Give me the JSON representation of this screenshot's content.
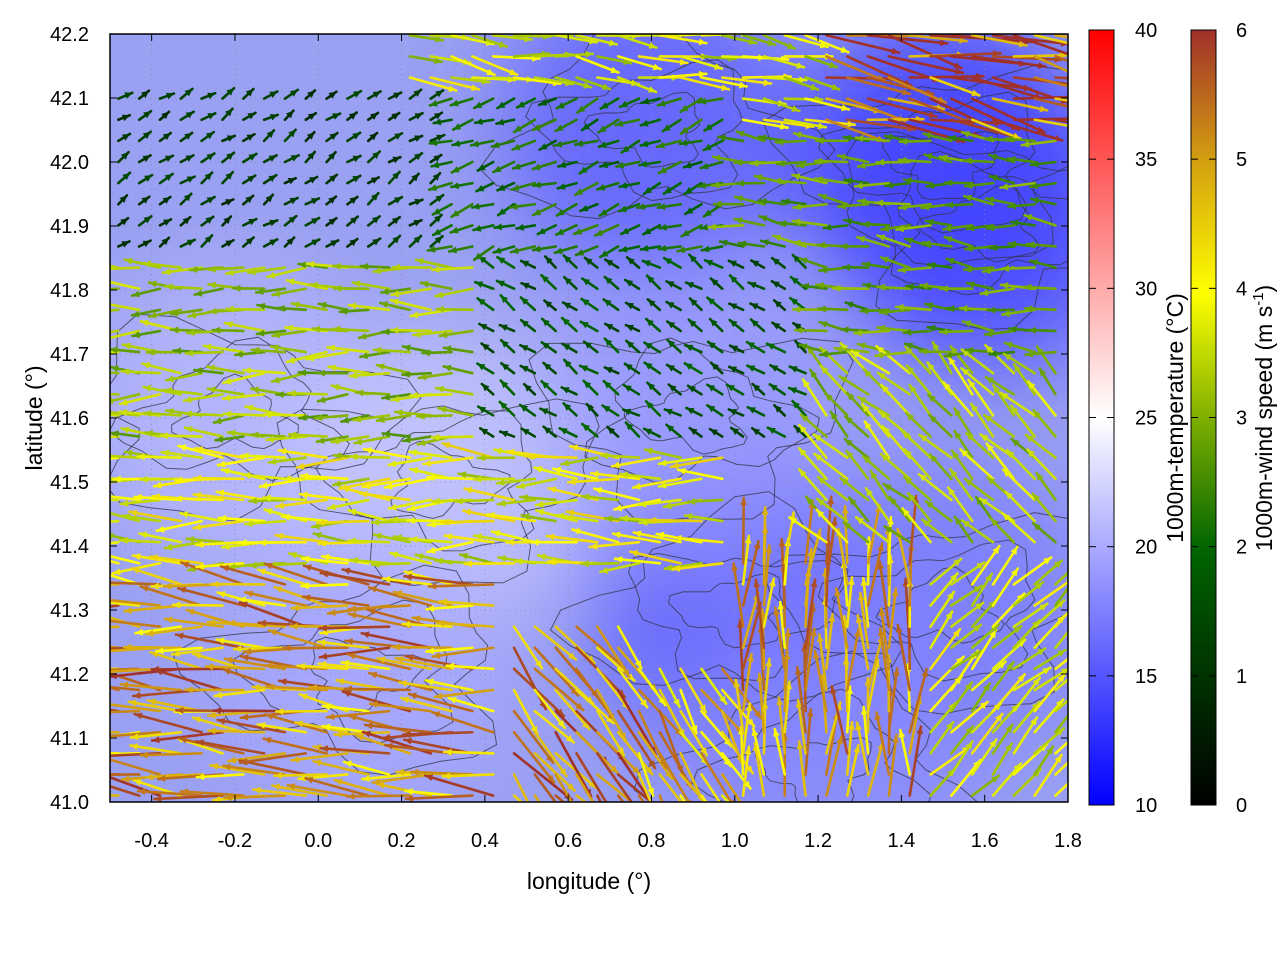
{
  "chart_data": {
    "type": "heatmap",
    "subtype": "wind-vector field over temperature map with contours",
    "title": "",
    "xlabel": "longitude (°)",
    "ylabel": "latitude (°)",
    "xlim": [
      -0.5,
      1.8
    ],
    "ylim": [
      41.0,
      42.2
    ],
    "xticks": [
      "-0.4",
      "-0.2",
      "0.0",
      "0.2",
      "0.4",
      "0.6",
      "0.8",
      "1.0",
      "1.2",
      "1.4",
      "1.6",
      "1.8"
    ],
    "yticks": [
      "41.0",
      "41.1",
      "41.2",
      "41.3",
      "41.4",
      "41.5",
      "41.6",
      "41.7",
      "41.8",
      "41.9",
      "42.0",
      "42.1",
      "42.2"
    ],
    "grid": true,
    "temperature_colorbar": {
      "label": "1000m-temperature (°C)",
      "range": [
        10,
        40
      ],
      "ticks": [
        "10",
        "15",
        "20",
        "25",
        "30",
        "35",
        "40"
      ],
      "colors": [
        "#0000ff",
        "#ffffff",
        "#ff0000"
      ]
    },
    "wind_colorbar": {
      "label_main": "1000m-wind speed (m s",
      "label_sup": "-1",
      "label_end": ")",
      "range": [
        0,
        6
      ],
      "ticks": [
        "0",
        "1",
        "2",
        "3",
        "4",
        "5",
        "6"
      ],
      "colors": [
        "#000000",
        "#006400",
        "#7fb000",
        "#ffff00",
        "#d4a010",
        "#a0302a"
      ]
    },
    "temperature_regions": [
      {
        "lon": -0.2,
        "lat": 41.6,
        "temp": 21
      },
      {
        "lon": 0.3,
        "lat": 41.5,
        "temp": 22
      },
      {
        "lon": 0.1,
        "lat": 41.2,
        "temp": 20
      },
      {
        "lon": 1.5,
        "lat": 42.0,
        "temp": 13
      },
      {
        "lon": 1.6,
        "lat": 41.9,
        "temp": 14
      },
      {
        "lon": 0.8,
        "lat": 42.05,
        "temp": 15
      },
      {
        "lon": 1.0,
        "lat": 41.3,
        "temp": 15
      },
      {
        "lon": 0.9,
        "lat": 41.6,
        "temp": 19
      },
      {
        "lon": 1.5,
        "lat": 41.3,
        "temp": 17
      },
      {
        "lon": 1.2,
        "lat": 41.05,
        "temp": 18
      }
    ],
    "wind_zones": [
      {
        "lon": [
          -0.5,
          0.45
        ],
        "lat": [
          41.0,
          41.35
        ],
        "u": -4.8,
        "v": 0.5,
        "speed": 4.8
      },
      {
        "lon": [
          0.4,
          0.75
        ],
        "lat": [
          41.0,
          41.3
        ],
        "u": 2.2,
        "v": -2.6,
        "speed": 5.0
      },
      {
        "lon": [
          0.75,
          1.0
        ],
        "lat": [
          41.0,
          41.22
        ],
        "u": 1.5,
        "v": -2.5,
        "speed": 4.4
      },
      {
        "lon": [
          1.0,
          1.45
        ],
        "lat": [
          41.0,
          41.4
        ],
        "u": 0.1,
        "v": 4.5,
        "speed": 4.7
      },
      {
        "lon": [
          1.45,
          1.8
        ],
        "lat": [
          41.0,
          41.35
        ],
        "u": 2.0,
        "v": 2.0,
        "speed": 3.2
      },
      {
        "lon": [
          -0.5,
          1.0
        ],
        "lat": [
          41.35,
          41.55
        ],
        "u": -3.5,
        "v": 0.1,
        "speed": 3.4
      },
      {
        "lon": [
          -0.5,
          0.4
        ],
        "lat": [
          41.55,
          41.85
        ],
        "u": -3.0,
        "v": 0.0,
        "speed": 2.6
      },
      {
        "lon": [
          0.4,
          1.2
        ],
        "lat": [
          41.55,
          41.85
        ],
        "u": -0.6,
        "v": 0.4,
        "speed": 1.0
      },
      {
        "lon": [
          1.2,
          1.8
        ],
        "lat": [
          41.4,
          41.7
        ],
        "u": -1.5,
        "v": 1.5,
        "speed": 2.8
      },
      {
        "lon": [
          -0.5,
          0.3
        ],
        "lat": [
          41.85,
          42.1
        ],
        "u": 0.3,
        "v": 0.2,
        "speed": 0.7
      },
      {
        "lon": [
          0.3,
          1.0
        ],
        "lat": [
          41.85,
          42.1
        ],
        "u": -0.8,
        "v": -0.3,
        "speed": 1.4
      },
      {
        "lon": [
          1.0,
          1.8
        ],
        "lat": [
          41.7,
          42.05
        ],
        "u": -2.0,
        "v": 0.2,
        "speed": 2.1
      },
      {
        "lon": [
          0.2,
          1.2
        ],
        "lat": [
          42.05,
          42.2
        ],
        "u": 2.5,
        "v": -0.4,
        "speed": 3.2
      },
      {
        "lon": [
          1.2,
          1.8
        ],
        "lat": [
          42.05,
          42.2
        ],
        "u": 4.0,
        "v": -0.8,
        "speed": 5.5
      }
    ]
  }
}
